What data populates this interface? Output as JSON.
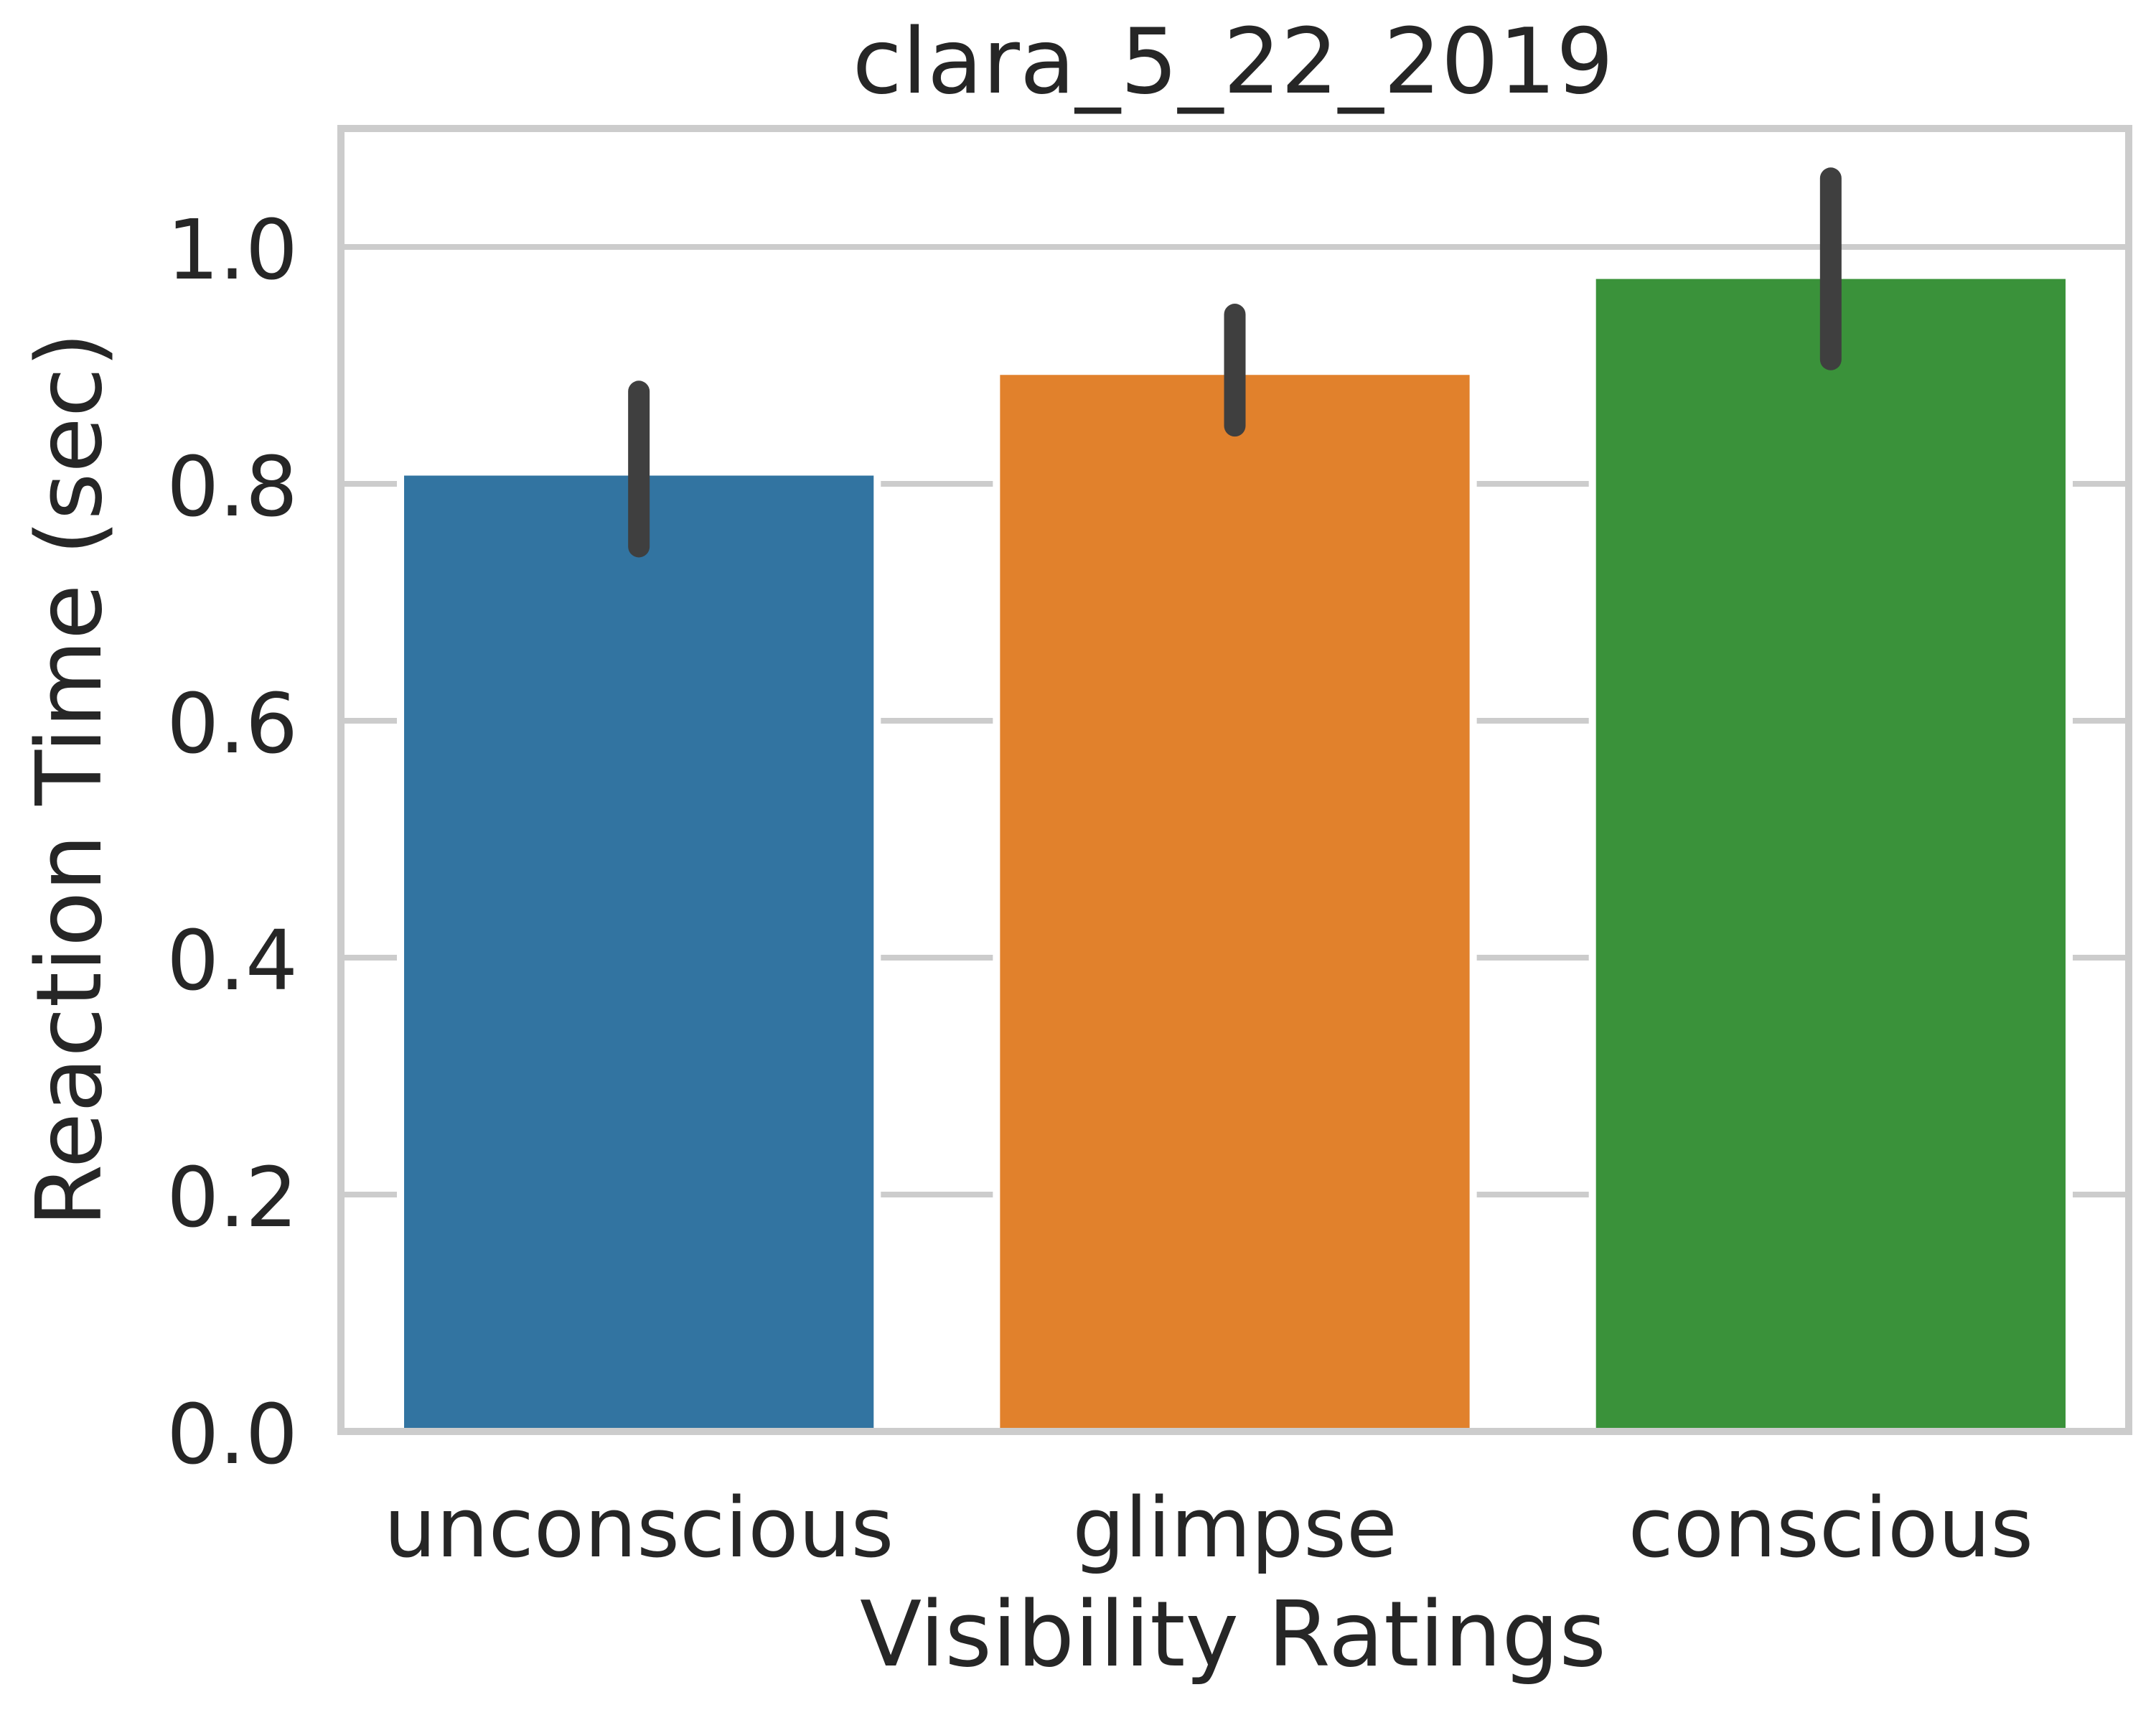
{
  "chart_data": {
    "type": "bar",
    "title": "clara_5_22_2019",
    "xlabel": "Visibility Ratings",
    "ylabel": "Reaction Time (sec)",
    "categories": [
      "unconscious",
      "glimpse",
      "conscious"
    ],
    "values": [
      0.81,
      0.895,
      0.976
    ],
    "error_bars": [
      {
        "low": 0.747,
        "high": 0.878
      },
      {
        "low": 0.849,
        "high": 0.943
      },
      {
        "low": 0.905,
        "high": 1.058
      }
    ],
    "colors": [
      "#3274a1",
      "#e1812c",
      "#3a923a"
    ],
    "ylim": [
      0,
      1.1
    ],
    "yticks": [
      0.0,
      0.2,
      0.4,
      0.6,
      0.8,
      1.0
    ],
    "ytick_labels": [
      "0.0",
      "0.2",
      "0.4",
      "0.6",
      "0.8",
      "1.0"
    ],
    "grid": true,
    "error_color": "#3f3f3f",
    "grid_color": "#cccccc",
    "text_color": "#262626"
  }
}
